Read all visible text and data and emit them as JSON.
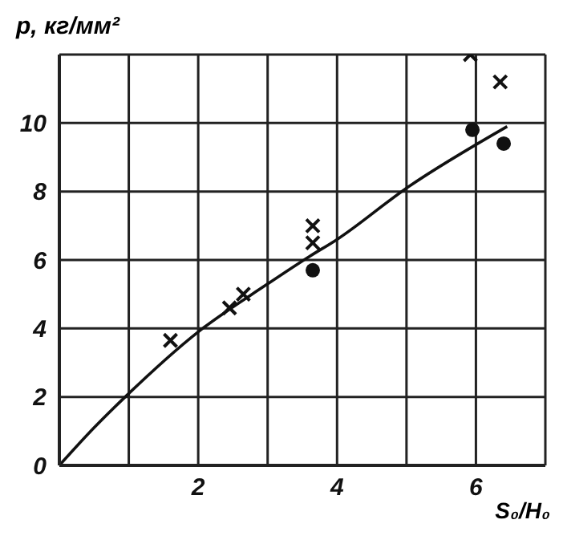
{
  "chart_data": {
    "type": "scatter",
    "ylabel": "p, кг/мм²",
    "xlabel": "S₀/H₀",
    "xlim": [
      0,
      7
    ],
    "xticks": [
      {
        "value": 0,
        "label": null
      },
      {
        "value": 1,
        "label": null
      },
      2,
      {
        "value": 3,
        "label": null
      },
      4,
      {
        "value": 5,
        "label": null
      },
      6,
      {
        "value": 7,
        "label": null
      }
    ],
    "ylim": [
      0,
      12
    ],
    "yticks": [
      0,
      2,
      4,
      6,
      8,
      10,
      {
        "value": 12,
        "label": null
      }
    ],
    "grid": true,
    "legend": false,
    "series": [
      {
        "marker": "cross",
        "color": "#111111",
        "x": [
          1.6,
          2.45,
          2.65,
          3.65,
          3.65,
          5.92,
          6.35
        ],
        "values": [
          3.65,
          4.6,
          5.0,
          7.0,
          6.5,
          12.0,
          11.2
        ]
      },
      {
        "marker": "circle",
        "color": "#111111",
        "x": [
          3.65,
          5.95,
          6.4
        ],
        "values": [
          5.7,
          9.8,
          9.4
        ]
      },
      {
        "type": "line",
        "marker": "none",
        "color": "#111111",
        "x": [
          0,
          0.5,
          1,
          2,
          3,
          3.6,
          4,
          5,
          6.45
        ],
        "values": [
          0,
          1.1,
          2.1,
          3.9,
          5.3,
          6.1,
          6.6,
          8.1,
          9.9
        ]
      }
    ]
  }
}
